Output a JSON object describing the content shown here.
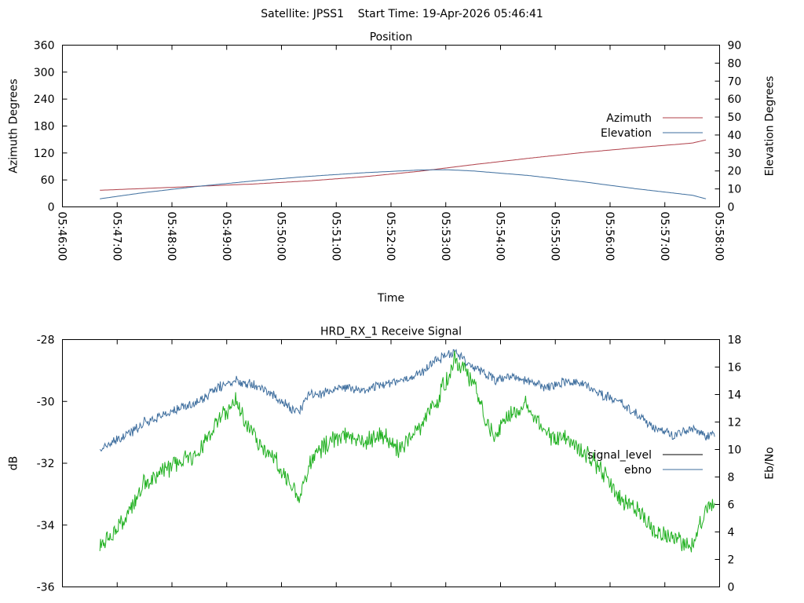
{
  "header": {
    "title": "Satellite: JPSS1    Start Time: 19-Apr-2026 05:46:41"
  },
  "chart_data": [
    {
      "type": "line",
      "title": "Position",
      "xlabel": "Time",
      "ylabel": "Azimuth Degrees",
      "y2label": "Elevation Degrees",
      "xlim": [
        0,
        720
      ],
      "ylim": [
        0,
        360
      ],
      "y2lim": [
        0,
        90
      ],
      "x_ticks": [
        0,
        60,
        120,
        180,
        240,
        300,
        360,
        420,
        480,
        540,
        600,
        660,
        720
      ],
      "x_tick_labels": [
        "05:46:00",
        "05:47:00",
        "05:48:00",
        "05:49:00",
        "05:50:00",
        "05:51:00",
        "05:52:00",
        "05:53:00",
        "05:54:00",
        "05:55:00",
        "05:56:00",
        "05:57:00",
        "05:58:00"
      ],
      "y_ticks": [
        0,
        60,
        120,
        180,
        240,
        300,
        360
      ],
      "y2_ticks": [
        0,
        10,
        20,
        30,
        40,
        50,
        60,
        70,
        80,
        90
      ],
      "legend": "right",
      "series": [
        {
          "name": "Azimuth",
          "axis": "y",
          "color": "#b0404a",
          "x": [
            41,
            90,
            150,
            210,
            270,
            330,
            390,
            450,
            510,
            570,
            630,
            690,
            705
          ],
          "y": [
            37,
            41,
            46,
            51,
            58,
            67,
            79,
            94,
            108,
            121,
            132,
            142,
            149
          ]
        },
        {
          "name": "Elevation",
          "axis": "y2",
          "color": "#3e6e9e",
          "x": [
            41,
            90,
            150,
            210,
            270,
            330,
            390,
            420,
            450,
            510,
            570,
            630,
            690,
            705
          ],
          "y": [
            4.5,
            8,
            11.5,
            14.5,
            17,
            19,
            20.5,
            20.7,
            20,
            17.5,
            14,
            10,
            6.5,
            4.5
          ]
        }
      ]
    },
    {
      "type": "line",
      "title": "HRD_RX_1 Receive Signal",
      "ylabel": "dB",
      "y2label": "Eb/No",
      "xlim": [
        0,
        720
      ],
      "ylim": [
        -36,
        -28
      ],
      "y2lim": [
        0,
        18
      ],
      "x_ticks": [
        0,
        60,
        120,
        180,
        240,
        300,
        360,
        420,
        480,
        540,
        600,
        660,
        720
      ],
      "y_ticks": [
        -36,
        -34,
        -32,
        -30,
        -28
      ],
      "y2_ticks": [
        0,
        2,
        4,
        6,
        8,
        10,
        12,
        14,
        16,
        18
      ],
      "legend": "right",
      "series": [
        {
          "name": "signal_level",
          "axis": "y",
          "color": "#000000",
          "note": "legend entry only, curve not visible (drawn beneath ebno)"
        },
        {
          "name": "ebno",
          "axis": "y2",
          "color": "#3e6e9e",
          "x": [
            41,
            50,
            70,
            90,
            110,
            130,
            150,
            170,
            190,
            210,
            230,
            250,
            260,
            270,
            290,
            310,
            330,
            350,
            370,
            390,
            410,
            430,
            450,
            465,
            475,
            490,
            510,
            530,
            550,
            570,
            590,
            610,
            630,
            650,
            670,
            690,
            705,
            715
          ],
          "y": [
            10,
            10.3,
            11,
            12,
            12.5,
            13,
            13.5,
            14.5,
            15,
            14.8,
            14,
            13,
            12.8,
            14,
            14.2,
            14.5,
            14.3,
            14.8,
            15,
            15.5,
            16.5,
            17.2,
            16,
            15.5,
            15,
            15.3,
            15,
            14.5,
            15,
            14.8,
            14,
            13.5,
            12.5,
            11.5,
            11,
            11.5,
            11,
            11.2
          ]
        },
        {
          "name": "received_trace",
          "axis": "y2",
          "color": "#20b020",
          "legend": false,
          "x": [
            41,
            50,
            70,
            90,
            110,
            130,
            150,
            170,
            190,
            210,
            230,
            250,
            260,
            270,
            290,
            310,
            330,
            350,
            370,
            390,
            410,
            430,
            450,
            465,
            475,
            490,
            510,
            530,
            550,
            570,
            590,
            610,
            630,
            650,
            670,
            690,
            705,
            715
          ],
          "y": [
            3,
            3.5,
            5,
            7.5,
            8.5,
            9,
            10,
            12,
            13.5,
            11,
            9.5,
            7.5,
            6.5,
            9,
            10.5,
            11,
            10.5,
            11,
            10,
            11.5,
            13.5,
            16.5,
            15,
            12,
            11,
            12.5,
            13.5,
            11,
            11,
            10,
            8.5,
            6.5,
            5.5,
            4,
            3.5,
            3,
            5.5,
            6
          ]
        }
      ]
    }
  ]
}
